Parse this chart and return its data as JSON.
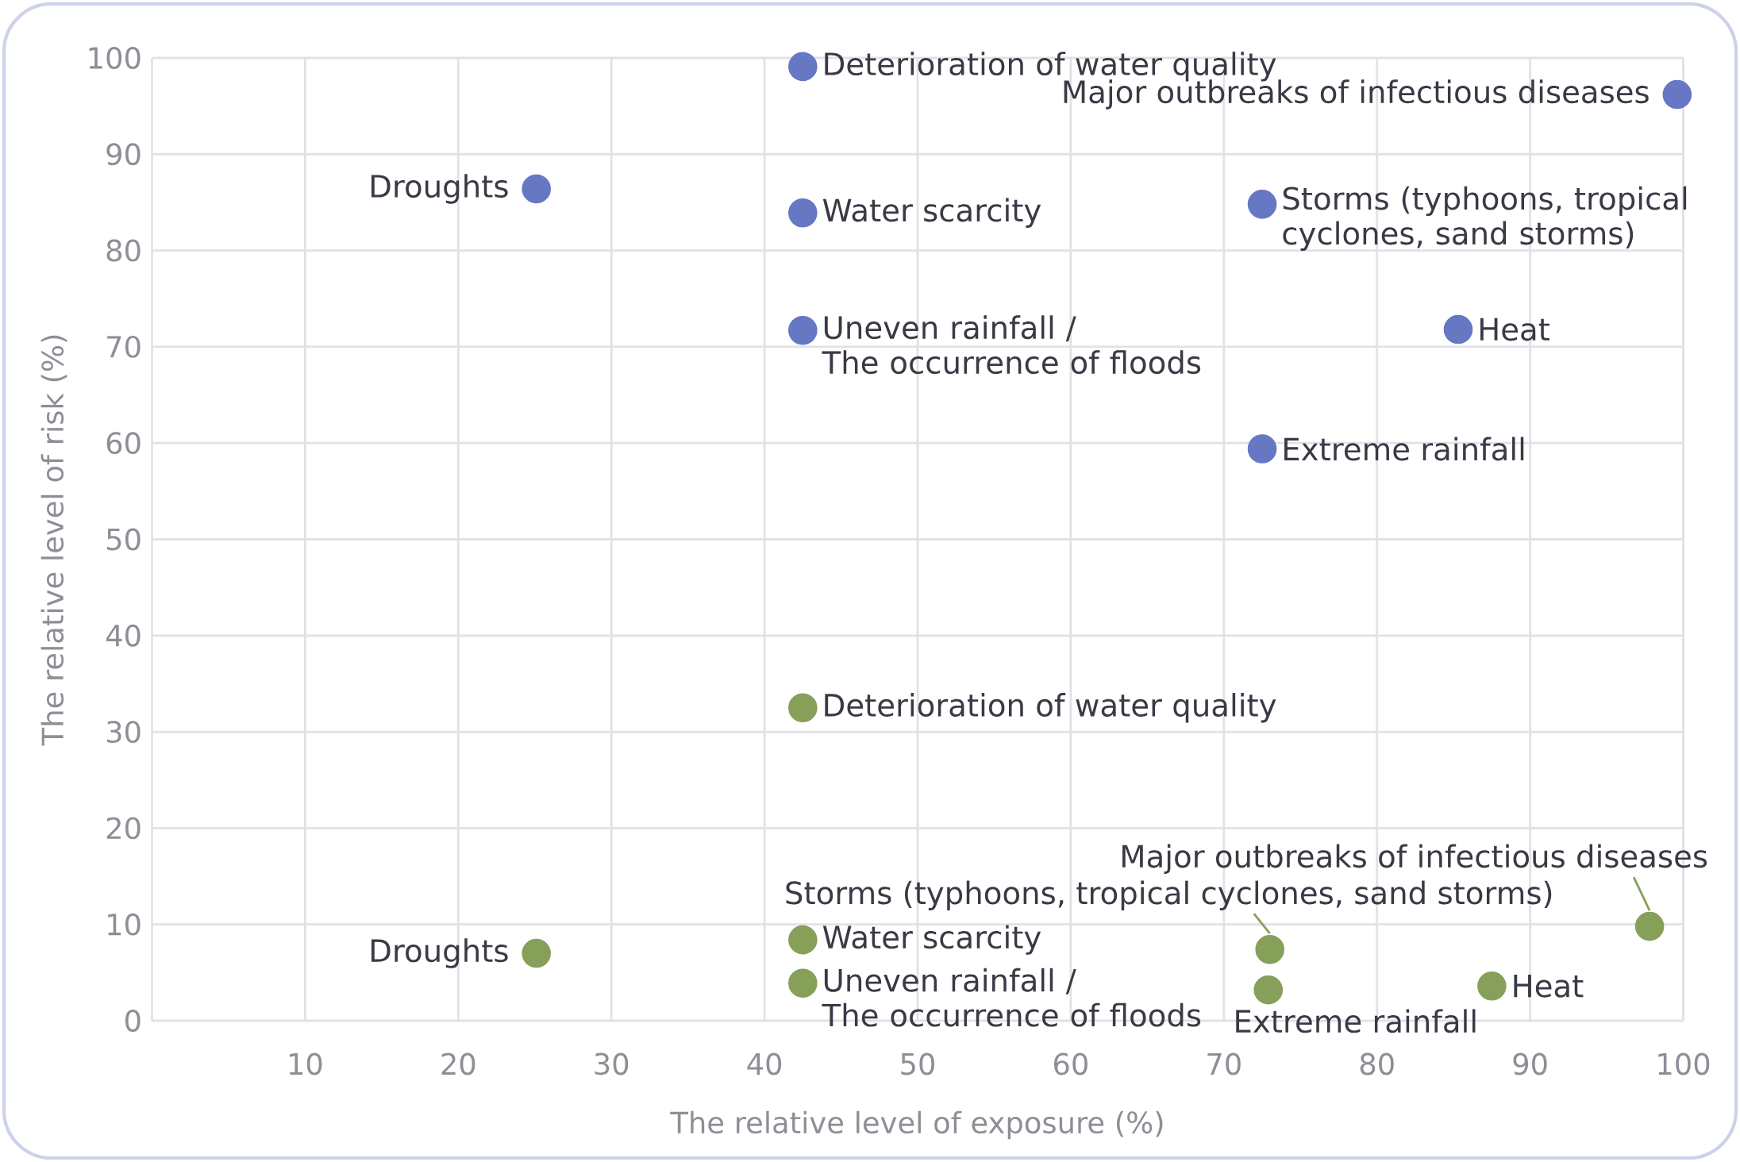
{
  "chart_data": {
    "type": "scatter",
    "xlabel": "The relative level of exposure (%)",
    "ylabel": "The relative level of risk (%)",
    "xlim": [
      0,
      100
    ],
    "ylim": [
      0,
      100
    ],
    "xticks": [
      {
        "value": 0,
        "label": null
      },
      10,
      20,
      30,
      40,
      50,
      60,
      70,
      80,
      90,
      100
    ],
    "yticks": [
      0,
      10,
      20,
      30,
      40,
      50,
      60,
      70,
      80,
      90,
      100
    ],
    "grid": true,
    "marker": "circle",
    "series": [
      {
        "color": "#6677c4",
        "x": [
          42.5,
          99.6,
          25.1,
          42.5,
          72.5,
          42.5,
          85.3,
          72.5
        ],
        "values": [
          99.1,
          96.2,
          86.4,
          83.9,
          84.8,
          71.7,
          71.8,
          59.4
        ]
      },
      {
        "color": "#86a05a",
        "x": [
          42.5,
          25.1,
          42.5,
          42.5,
          73.0,
          72.9,
          87.5,
          97.8
        ],
        "values": [
          32.5,
          7.0,
          8.4,
          3.9,
          7.4,
          3.2,
          3.6,
          9.8
        ]
      }
    ],
    "annotations": [
      {
        "text": "Deterioration of water quality",
        "x": 42.5,
        "y": 99.1
      },
      {
        "text": "Major outbreaks of infectious diseases",
        "x": 99.6,
        "y": 96.2
      },
      {
        "text": "Droughts",
        "x": 25.1,
        "y": 86.4
      },
      {
        "text": "Water scarcity",
        "x": 42.5,
        "y": 83.9
      },
      {
        "text": "Storms (typhoons, tropical cyclones, sand storms)",
        "x": 72.5,
        "y": 84.8
      },
      {
        "text": "Uneven rainfall / The occurrence of floods",
        "x": 42.5,
        "y": 71.7
      },
      {
        "text": "Heat",
        "x": 85.3,
        "y": 71.8
      },
      {
        "text": "Extreme rainfall",
        "x": 72.5,
        "y": 59.4
      },
      {
        "text": "Deterioration of water quality",
        "x": 42.5,
        "y": 32.5
      },
      {
        "text": "Droughts",
        "x": 25.1,
        "y": 7.0
      },
      {
        "text": "Water scarcity",
        "x": 42.5,
        "y": 8.4
      },
      {
        "text": "Uneven rainfall / The occurrence of floods",
        "x": 42.5,
        "y": 3.9
      },
      {
        "text": "Storms (typhoons, tropical cyclones, sand storms)",
        "x": 73.0,
        "y": 7.4
      },
      {
        "text": "Extreme rainfall",
        "x": 72.9,
        "y": 3.2
      },
      {
        "text": "Heat",
        "x": 87.5,
        "y": 3.6
      },
      {
        "text": "Major outbreaks of infectious diseases",
        "x": 97.8,
        "y": 9.8
      }
    ]
  }
}
